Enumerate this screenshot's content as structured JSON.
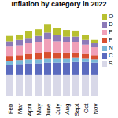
{
  "chart_data": {
    "type": "bar",
    "title": "Inflation by category in 2022",
    "categories": [
      "Feb",
      "Mar",
      "April",
      "May",
      "June",
      "July",
      "Aug",
      "Sept",
      "Oct",
      "Nov"
    ],
    "series": [
      {
        "name": "S",
        "color": "#d8d8e8",
        "values": [
          3.2,
          3.2,
          3.2,
          3.2,
          3.2,
          3.2,
          3.2,
          3.2,
          3.2,
          3.2
        ]
      },
      {
        "name": "C",
        "color": "#5b6bbf",
        "values": [
          1.5,
          1.6,
          1.7,
          1.7,
          1.8,
          1.8,
          1.8,
          1.9,
          1.9,
          1.8
        ]
      },
      {
        "name": "N",
        "color": "#7ab8d8",
        "values": [
          0.6,
          0.6,
          0.6,
          0.6,
          0.6,
          0.6,
          0.6,
          0.6,
          0.5,
          0.5
        ]
      },
      {
        "name": "F",
        "color": "#d85030",
        "values": [
          0.7,
          0.7,
          0.8,
          0.9,
          1.0,
          0.9,
          0.9,
          0.8,
          0.7,
          0.6
        ]
      },
      {
        "name": "P",
        "color": "#f0a0b8",
        "values": [
          1.4,
          1.5,
          1.6,
          1.7,
          1.9,
          1.7,
          1.6,
          1.6,
          1.4,
          1.2
        ]
      },
      {
        "name": "D",
        "color": "#8c7ab8",
        "values": [
          0.8,
          0.8,
          0.8,
          0.9,
          1.0,
          0.9,
          0.8,
          0.8,
          0.7,
          0.6
        ]
      },
      {
        "name": "O",
        "color": "#b8c030",
        "values": [
          0.8,
          0.8,
          1.0,
          1.0,
          1.2,
          1.1,
          1.0,
          0.9,
          0.7,
          0.5
        ]
      }
    ],
    "ylim": [
      0,
      12.5
    ],
    "stacked": true,
    "tick_labels": "x",
    "legend": "right"
  }
}
